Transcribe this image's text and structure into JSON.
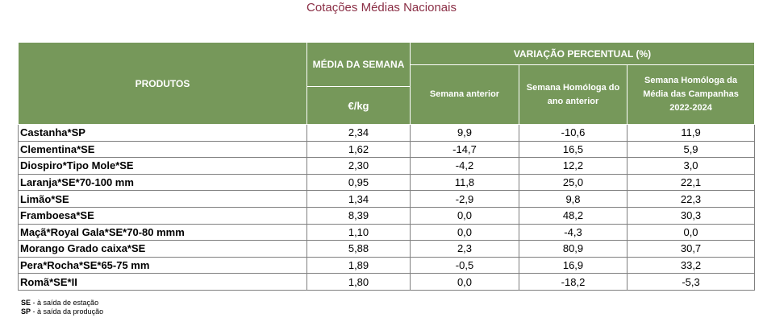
{
  "title": "Cotações Médias Nacionais",
  "headers": {
    "produtos": "PRODUTOS",
    "media_semana": "MÉDIA DA SEMANA",
    "unit": "€/kg",
    "variacao": "VARIAÇÃO PERCENTUAL (%)",
    "semana_anterior": "Semana anterior",
    "semana_homologa": "Semana Homóloga do ano anterior",
    "semana_homologa_media": "Semana Homóloga da Média das Campanhas 2022-2024"
  },
  "rows": [
    {
      "produto": "Castanha*SP",
      "media": "2,34",
      "sem_ant": "9,9",
      "hom_ano": "-10,6",
      "hom_media": "11,9"
    },
    {
      "produto": "Clementina*SE",
      "media": "1,62",
      "sem_ant": "-14,7",
      "hom_ano": "16,5",
      "hom_media": "5,9"
    },
    {
      "produto": "Diospiro*Tipo Mole*SE",
      "media": "2,30",
      "sem_ant": "-4,2",
      "hom_ano": "12,2",
      "hom_media": "3,0"
    },
    {
      "produto": "Laranja*SE*70-100 mm",
      "media": "0,95",
      "sem_ant": "11,8",
      "hom_ano": "25,0",
      "hom_media": "22,1"
    },
    {
      "produto": "Limão*SE",
      "media": "1,34",
      "sem_ant": "-2,9",
      "hom_ano": "9,8",
      "hom_media": "22,3"
    },
    {
      "produto": "Framboesa*SE",
      "media": "8,39",
      "sem_ant": "0,0",
      "hom_ano": "48,2",
      "hom_media": "30,3"
    },
    {
      "produto": "Maçã*Royal Gala*SE*70-80 mmm",
      "media": "1,10",
      "sem_ant": "0,0",
      "hom_ano": "-4,3",
      "hom_media": "0,0"
    },
    {
      "produto": "Morango Grado caixa*SE",
      "media": "5,88",
      "sem_ant": "2,3",
      "hom_ano": "80,9",
      "hom_media": "30,7"
    },
    {
      "produto": "Pera*Rocha*SE*65-75 mm",
      "media": "1,89",
      "sem_ant": "-0,5",
      "hom_ano": "16,9",
      "hom_media": "33,2"
    },
    {
      "produto": "Romã*SE*II",
      "media": "1,80",
      "sem_ant": "0,0",
      "hom_ano": "-18,2",
      "hom_media": "-5,3"
    }
  ],
  "notes": [
    {
      "code": "SE",
      "text": " - à saída de estação"
    },
    {
      "code": "SP",
      "text": " - à saída da produção"
    }
  ],
  "colors": {
    "header_bg": "#76985a",
    "title": "#8a2e45"
  }
}
